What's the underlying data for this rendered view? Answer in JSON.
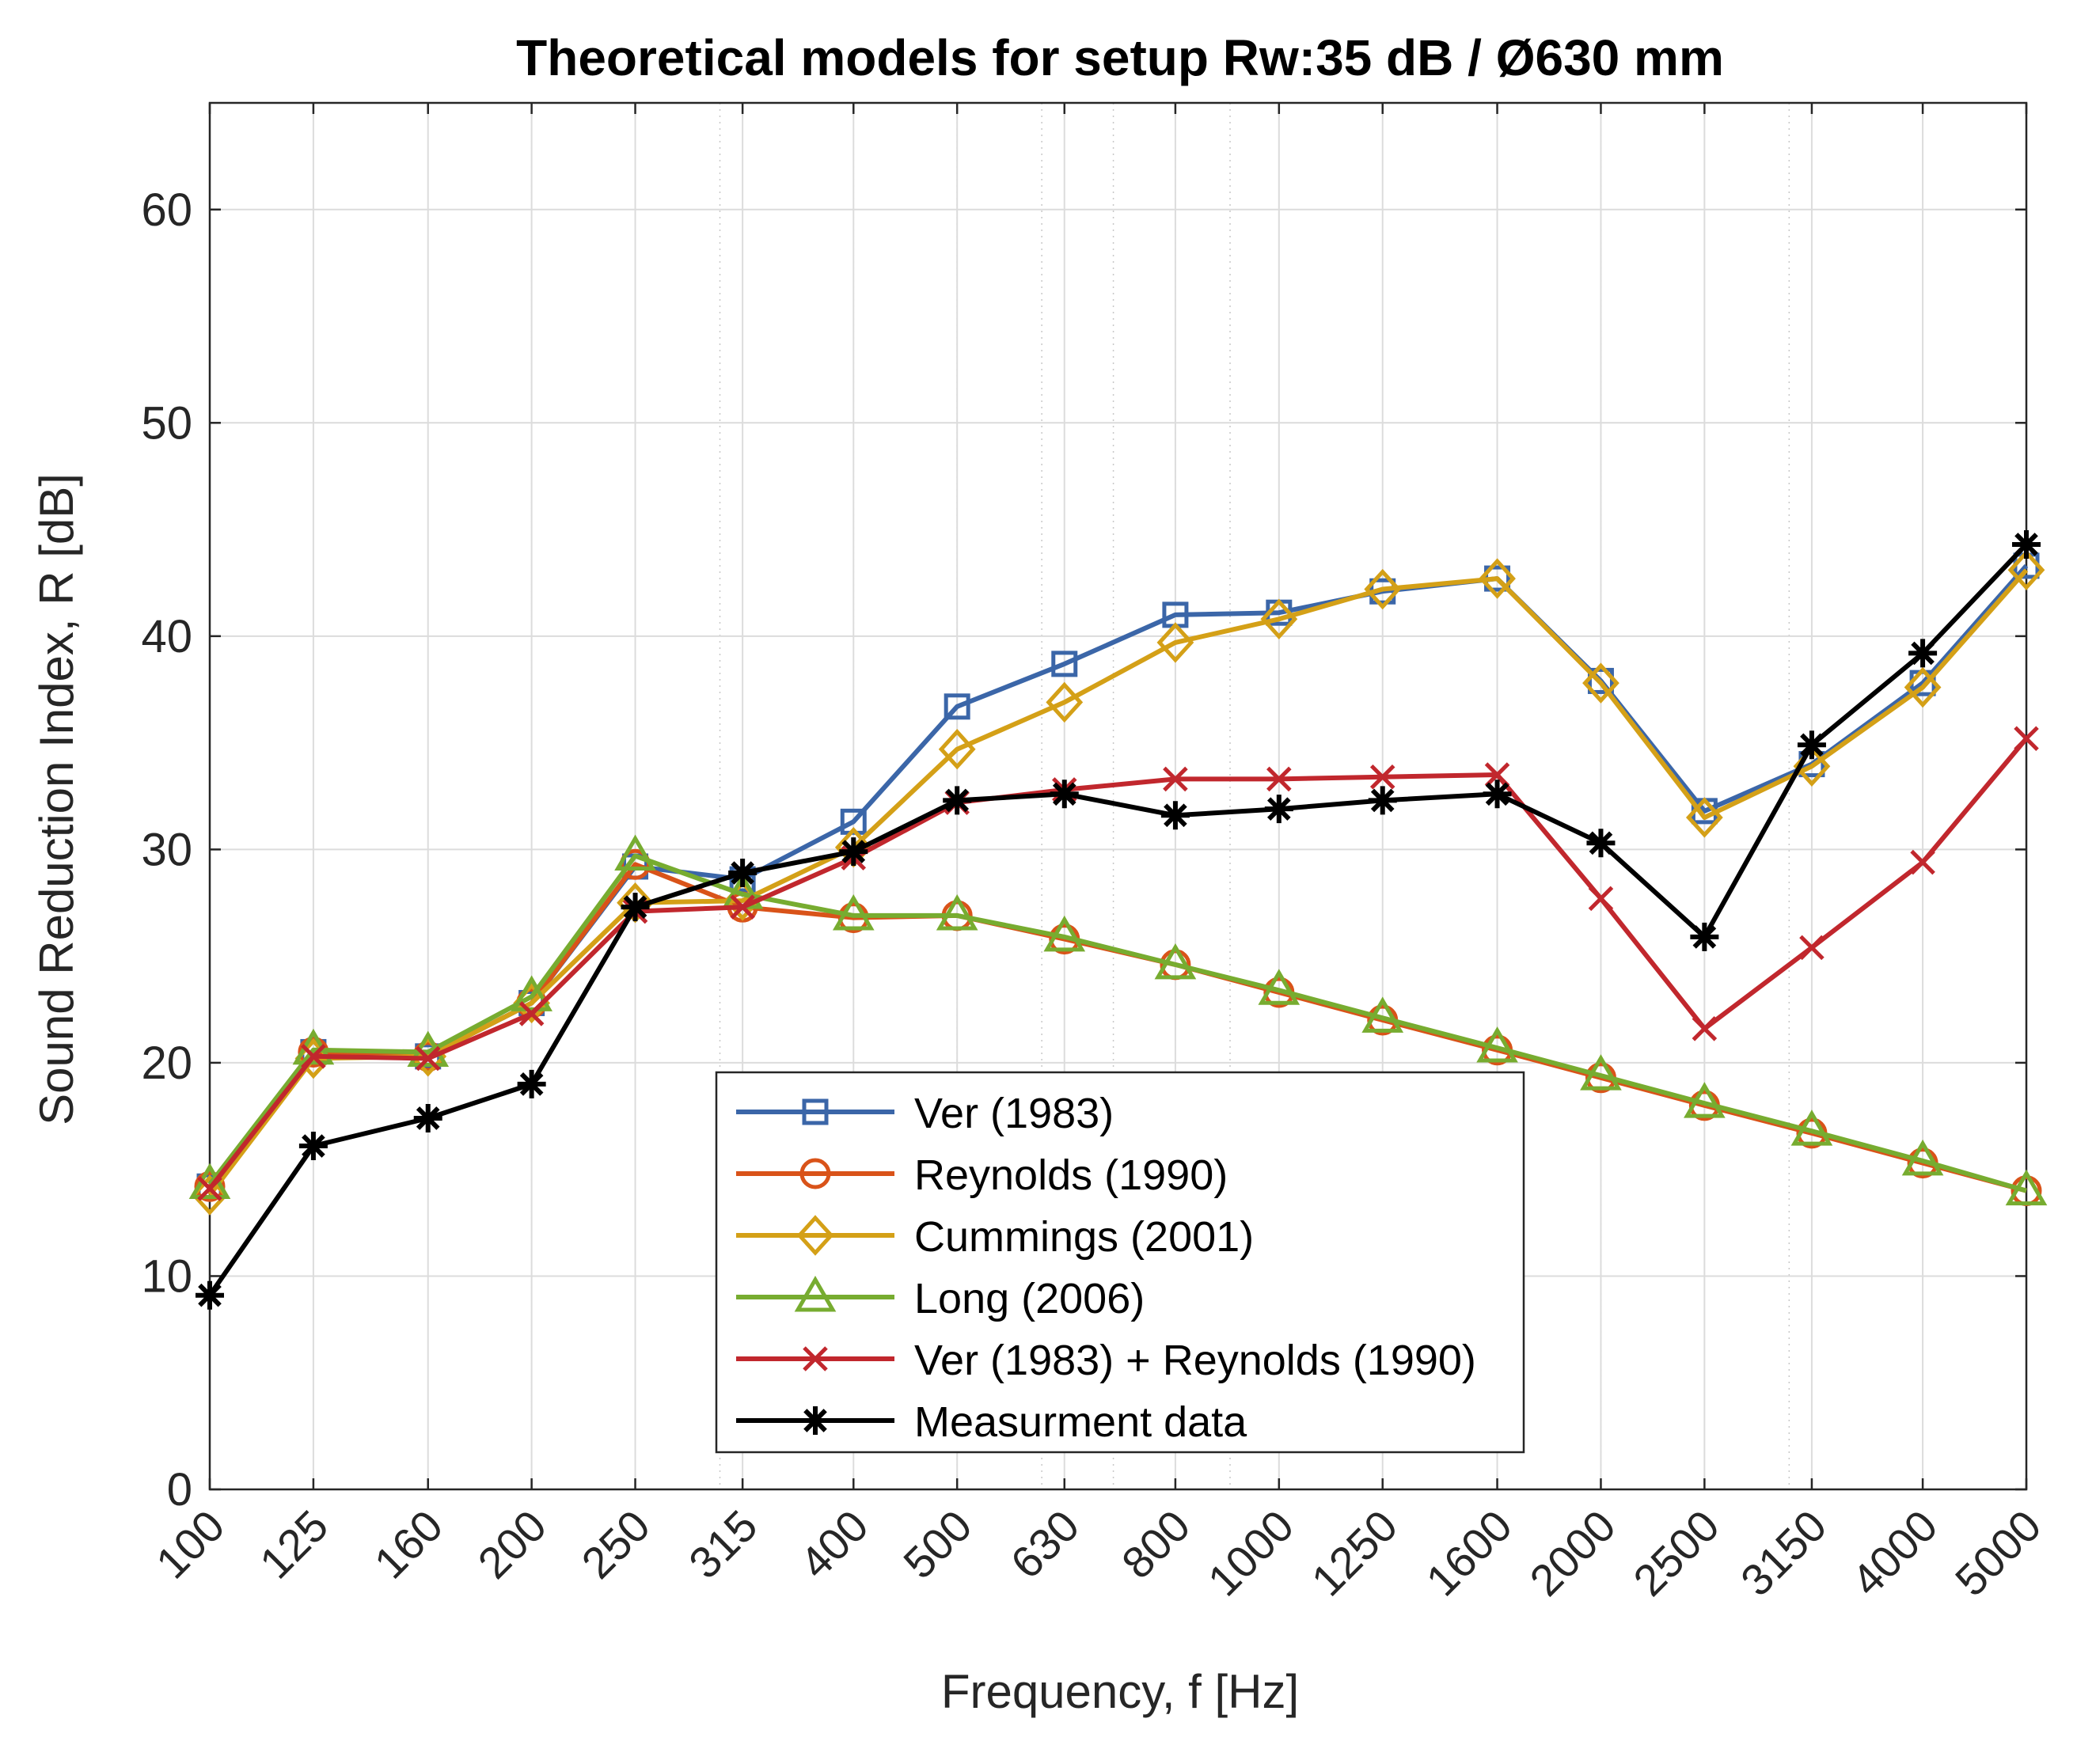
{
  "chart_data": {
    "type": "line",
    "title": "Theoretical models for setup Rw:35 dB / Ø630 mm",
    "xlabel": "Frequency, f [Hz]",
    "ylabel": "Sound Reduction Index, R [dB]",
    "xscale": "log",
    "xlim": [
      100,
      5000
    ],
    "ylim": [
      0,
      65
    ],
    "yticks": [
      0,
      10,
      20,
      30,
      40,
      50,
      60
    ],
    "grid": true,
    "legend_position": "bottom-center",
    "categories": [
      "100",
      "125",
      "160",
      "200",
      "250",
      "315",
      "400",
      "500",
      "630",
      "800",
      "1000",
      "1250",
      "1600",
      "2000",
      "2500",
      "3150",
      "4000",
      "5000"
    ],
    "x": [
      100,
      125,
      160,
      200,
      250,
      315,
      400,
      500,
      630,
      800,
      1000,
      1250,
      1600,
      2000,
      2500,
      3150,
      4000,
      5000
    ],
    "series": [
      {
        "name": "Ver (1983)",
        "color": "#3b66a8",
        "marker": "square",
        "values": [
          14.2,
          20.5,
          20.3,
          22.8,
          29.2,
          28.6,
          31.3,
          36.7,
          38.7,
          41.0,
          41.1,
          42.1,
          42.7,
          37.9,
          31.8,
          34.0,
          37.8,
          43.3
        ]
      },
      {
        "name": "Reynolds (1990)",
        "color": "#d95319",
        "marker": "circle",
        "values": [
          14.2,
          20.5,
          20.3,
          22.8,
          29.3,
          27.3,
          26.8,
          26.9,
          25.8,
          24.6,
          23.3,
          22.0,
          20.6,
          19.3,
          18.0,
          16.7,
          15.3,
          14.0
        ]
      },
      {
        "name": "Cummings (2001)",
        "color": "#d4a017",
        "marker": "diamond",
        "values": [
          13.8,
          20.2,
          20.3,
          22.8,
          27.5,
          27.6,
          30.1,
          34.7,
          36.9,
          39.7,
          40.8,
          42.2,
          42.7,
          37.8,
          31.5,
          33.9,
          37.6,
          43.1
        ]
      },
      {
        "name": "Long (2006)",
        "color": "#77ac30",
        "marker": "triangle",
        "values": [
          14.3,
          20.6,
          20.5,
          23.1,
          29.7,
          27.9,
          26.9,
          26.9,
          25.9,
          24.6,
          23.4,
          22.1,
          20.7,
          19.4,
          18.1,
          16.8,
          15.4,
          14.0
        ]
      },
      {
        "name": "Ver (1983) + Reynolds (1990)",
        "color": "#c1272d",
        "marker": "x",
        "values": [
          14.1,
          20.3,
          20.2,
          22.3,
          27.1,
          27.3,
          29.6,
          32.2,
          32.8,
          33.3,
          33.3,
          33.4,
          33.5,
          27.7,
          21.6,
          25.4,
          29.4,
          35.2
        ]
      },
      {
        "name": "Measurment data",
        "color": "#000000",
        "marker": "star",
        "values": [
          9.1,
          16.1,
          17.4,
          19.0,
          27.3,
          28.9,
          29.9,
          32.3,
          32.6,
          31.6,
          31.9,
          32.3,
          32.6,
          30.3,
          25.9,
          34.9,
          39.2,
          44.3
        ]
      }
    ]
  }
}
